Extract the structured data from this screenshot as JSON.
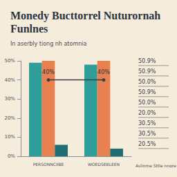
{
  "chart_data": {
    "type": "bar",
    "title": "Monedy Bucttorrel Nuturornah Funlnes",
    "subtitle": "In aserbly tiong nh atomnia",
    "categories": [
      "PERSONNCIIBE",
      "WOEDSEBLEEN"
    ],
    "series": [
      {
        "type": "bar",
        "color": "#2f9e99",
        "values": [
          49,
          48
        ]
      },
      {
        "type": "bar",
        "color": "#e8814f",
        "values": [
          50,
          50
        ]
      },
      {
        "type": "bar",
        "color": "#1f6e73",
        "values": [
          6,
          4
        ]
      },
      {
        "type": "line",
        "color": "#3a3f4a",
        "marker": "circle",
        "values": [
          40,
          40
        ],
        "value_labels": [
          "40%",
          "40%"
        ],
        "data_labels": true
      }
    ],
    "ylim": [
      0,
      50
    ],
    "yticks": [
      {
        "value": 0,
        "label": "0%"
      },
      {
        "value": 10,
        "label": "10%"
      },
      {
        "value": 20,
        "label": "20%"
      },
      {
        "value": 30,
        "label": "30%"
      },
      {
        "value": 40,
        "label": "40%"
      },
      {
        "value": 50,
        "label": "50%"
      }
    ],
    "grid": false,
    "annotations": [
      "50.9%",
      "50.9%",
      "50.0%",
      "50.9%",
      "50.0%",
      "20.0%",
      "30.5%",
      "30.5%",
      "20.5%"
    ],
    "footnote": "Aslinme Sttle nnore"
  }
}
